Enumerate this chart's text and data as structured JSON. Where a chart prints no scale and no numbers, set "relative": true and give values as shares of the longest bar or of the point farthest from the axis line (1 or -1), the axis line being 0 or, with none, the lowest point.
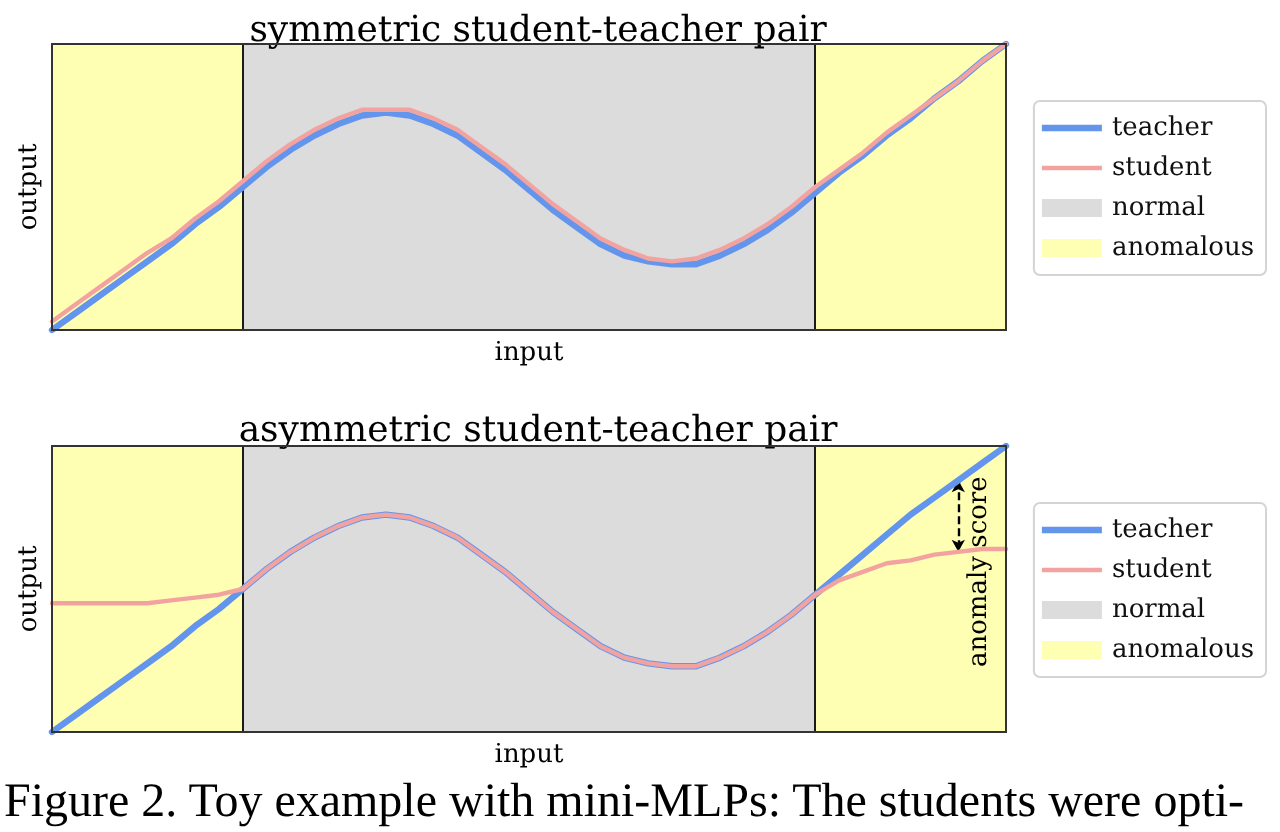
{
  "chart_data": [
    {
      "type": "line",
      "title": "symmetric student-teacher pair",
      "xlabel": "input",
      "ylabel": "output",
      "relative": true,
      "tick_labels": false,
      "legend": "right",
      "categories": [
        null,
        null,
        null,
        null,
        null,
        null,
        null,
        null,
        null,
        null,
        null,
        null,
        null,
        null,
        null,
        null,
        null,
        null,
        null,
        null,
        null,
        null,
        null,
        null,
        null,
        null,
        null,
        null,
        null,
        null,
        null,
        null,
        null,
        null,
        null,
        null,
        null,
        null,
        null,
        null,
        null
      ],
      "series": [
        {
          "name": "teacher",
          "color": "#6495ed",
          "values": [
            0,
            0.06,
            0.12,
            0.18,
            0.24,
            0.3,
            0.37,
            0.43,
            0.5,
            0.57,
            0.63,
            0.68,
            0.72,
            0.75,
            0.76,
            0.75,
            0.72,
            0.68,
            0.62,
            0.56,
            0.49,
            0.42,
            0.36,
            0.3,
            0.26,
            0.24,
            0.23,
            0.23,
            0.26,
            0.3,
            0.35,
            0.41,
            0.48,
            0.55,
            0.61,
            0.68,
            0.74,
            0.81,
            0.87,
            0.94,
            1
          ]
        },
        {
          "name": "student",
          "color": "#f2a3a0",
          "values": [
            0.03,
            0.09,
            0.15,
            0.21,
            0.27,
            0.32,
            0.39,
            0.45,
            0.52,
            0.59,
            0.65,
            0.7,
            0.74,
            0.77,
            0.77,
            0.77,
            0.74,
            0.7,
            0.64,
            0.58,
            0.51,
            0.44,
            0.38,
            0.32,
            0.28,
            0.25,
            0.24,
            0.25,
            0.28,
            0.32,
            0.37,
            0.43,
            0.5,
            0.56,
            0.62,
            0.69,
            0.75,
            0.81,
            0.87,
            0.94,
            1
          ]
        },
        {
          "name": "normal",
          "type": "area",
          "color": "#dcdcdc",
          "values": [
            null,
            null,
            null,
            null,
            null,
            null,
            null,
            null,
            1,
            1,
            1,
            1,
            1,
            1,
            1,
            1,
            1,
            1,
            1,
            1,
            1,
            1,
            1,
            1,
            1,
            1,
            1,
            1,
            1,
            1,
            1,
            1,
            1,
            null,
            null,
            null,
            null,
            null,
            null,
            null,
            null
          ]
        },
        {
          "name": "anomalous",
          "type": "area",
          "color": "#ffffb3",
          "values": [
            1,
            1,
            1,
            1,
            1,
            1,
            1,
            1,
            1,
            null,
            null,
            null,
            null,
            null,
            null,
            null,
            null,
            null,
            null,
            null,
            null,
            null,
            null,
            null,
            null,
            null,
            null,
            null,
            null,
            null,
            null,
            null,
            1,
            1,
            1,
            1,
            1,
            1,
            1,
            1,
            1
          ]
        }
      ]
    },
    {
      "type": "line",
      "title": "asymmetric student-teacher pair",
      "xlabel": "input",
      "ylabel": "output",
      "relative": true,
      "tick_labels": false,
      "legend": "right",
      "categories": [
        null,
        null,
        null,
        null,
        null,
        null,
        null,
        null,
        null,
        null,
        null,
        null,
        null,
        null,
        null,
        null,
        null,
        null,
        null,
        null,
        null,
        null,
        null,
        null,
        null,
        null,
        null,
        null,
        null,
        null,
        null,
        null,
        null,
        null,
        null,
        null,
        null,
        null,
        null,
        null,
        null
      ],
      "series": [
        {
          "name": "teacher",
          "color": "#6495ed",
          "values": [
            0,
            0.06,
            0.12,
            0.18,
            0.24,
            0.3,
            0.37,
            0.43,
            0.5,
            0.57,
            0.63,
            0.68,
            0.72,
            0.75,
            0.76,
            0.75,
            0.72,
            0.68,
            0.62,
            0.56,
            0.49,
            0.42,
            0.36,
            0.3,
            0.26,
            0.24,
            0.23,
            0.23,
            0.26,
            0.3,
            0.35,
            0.41,
            0.48,
            0.55,
            0.62,
            0.69,
            0.76,
            0.82,
            0.88,
            0.94,
            1
          ]
        },
        {
          "name": "student",
          "color": "#f2a3a0",
          "values": [
            0.45,
            0.45,
            0.45,
            0.45,
            0.45,
            0.46,
            0.47,
            0.48,
            0.5,
            0.57,
            0.63,
            0.68,
            0.72,
            0.75,
            0.76,
            0.75,
            0.72,
            0.68,
            0.62,
            0.56,
            0.49,
            0.42,
            0.36,
            0.3,
            0.26,
            0.24,
            0.23,
            0.23,
            0.26,
            0.3,
            0.35,
            0.41,
            0.48,
            0.53,
            0.56,
            0.59,
            0.6,
            0.62,
            0.63,
            0.64,
            0.64
          ]
        },
        {
          "name": "normal",
          "type": "area",
          "color": "#dcdcdc",
          "values": [
            null,
            null,
            null,
            null,
            null,
            null,
            null,
            null,
            1,
            1,
            1,
            1,
            1,
            1,
            1,
            1,
            1,
            1,
            1,
            1,
            1,
            1,
            1,
            1,
            1,
            1,
            1,
            1,
            1,
            1,
            1,
            1,
            1,
            null,
            null,
            null,
            null,
            null,
            null,
            null,
            null
          ]
        },
        {
          "name": "anomalous",
          "type": "area",
          "color": "#ffffb3",
          "values": [
            1,
            1,
            1,
            1,
            1,
            1,
            1,
            1,
            1,
            null,
            null,
            null,
            null,
            null,
            null,
            null,
            null,
            null,
            null,
            null,
            null,
            null,
            null,
            null,
            null,
            null,
            null,
            null,
            null,
            null,
            null,
            null,
            1,
            1,
            1,
            1,
            1,
            1,
            1,
            1,
            1
          ]
        }
      ],
      "annotations": [
        {
          "text": "anomaly score"
        },
        "Figure 2. Toy example with mini-MLPs: The students were opti-"
      ]
    }
  ]
}
